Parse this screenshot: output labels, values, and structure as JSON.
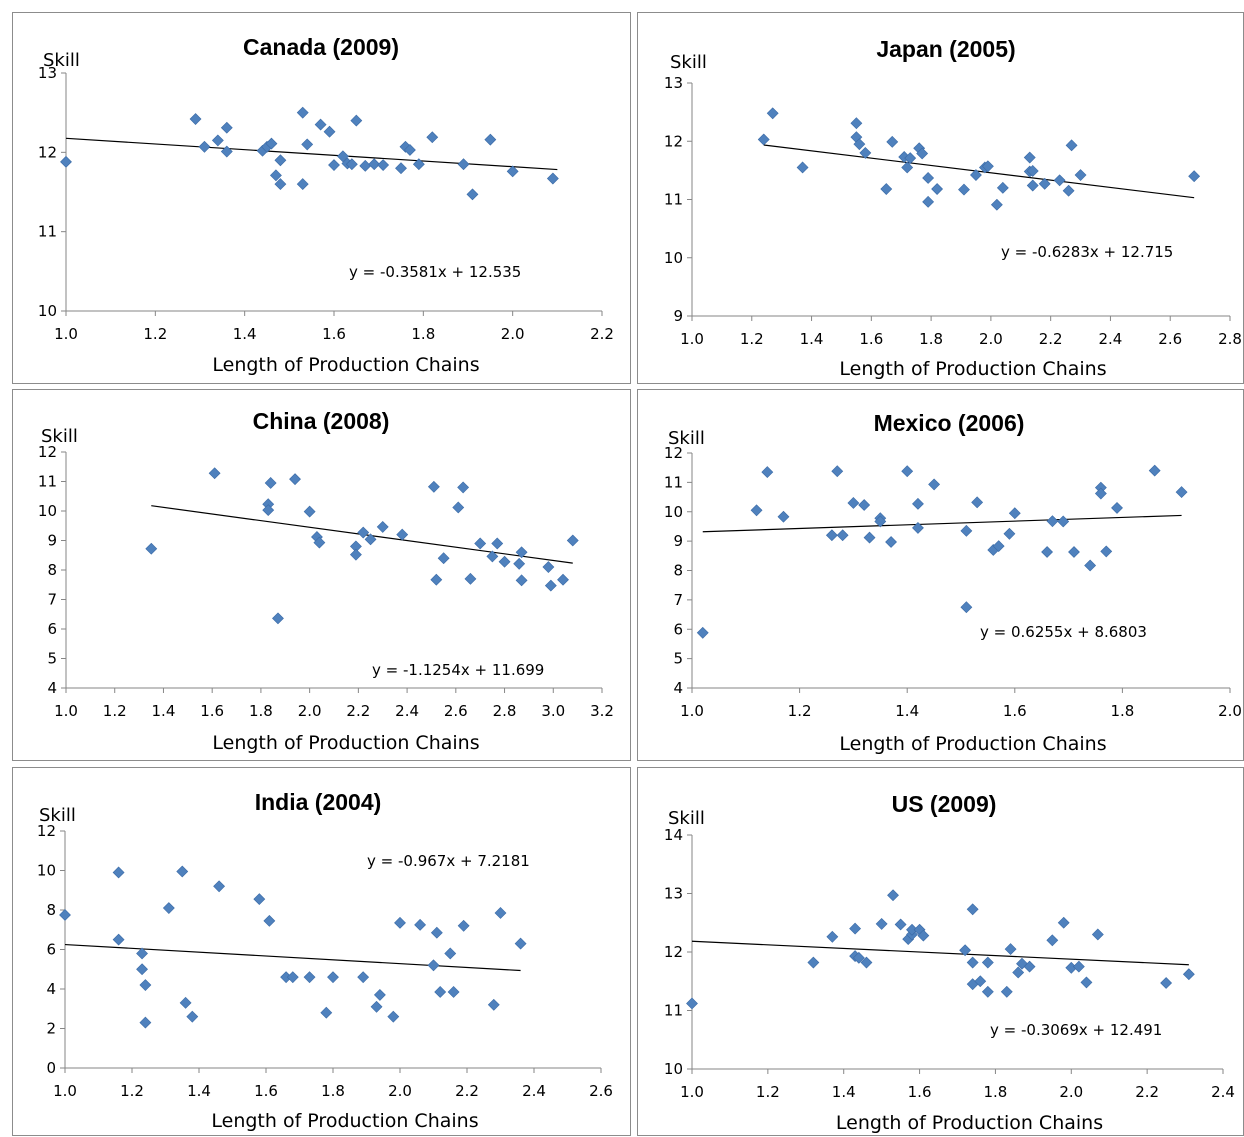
{
  "chart_data": [
    {
      "type": "scatter",
      "title": "Canada (2009)",
      "ylabel": "Skill",
      "xlabel": "Length of Production Chains",
      "equation": "y = -0.3581x + 12.535",
      "xlim": [
        1.0,
        2.2
      ],
      "ylim": [
        10,
        13
      ],
      "xticks": [
        "1.0",
        "1.2",
        "1.4",
        "1.6",
        "1.8",
        "2.0",
        "2.2"
      ],
      "yticks": [
        "10",
        "11",
        "12",
        "13"
      ],
      "trend": {
        "slope": -0.3581,
        "intercept": 12.535,
        "x_range": [
          1.0,
          2.1
        ]
      },
      "series": [
        {
          "marker_color": "#4f81bd",
          "points": [
            [
              1.0,
              11.88
            ],
            [
              1.29,
              12.42
            ],
            [
              1.31,
              12.07
            ],
            [
              1.34,
              12.15
            ],
            [
              1.36,
              12.01
            ],
            [
              1.36,
              12.31
            ],
            [
              1.44,
              12.02
            ],
            [
              1.45,
              12.07
            ],
            [
              1.46,
              12.11
            ],
            [
              1.47,
              11.71
            ],
            [
              1.48,
              11.9
            ],
            [
              1.48,
              11.6
            ],
            [
              1.53,
              12.5
            ],
            [
              1.53,
              11.6
            ],
            [
              1.54,
              12.1
            ],
            [
              1.57,
              12.35
            ],
            [
              1.59,
              12.26
            ],
            [
              1.6,
              11.84
            ],
            [
              1.62,
              11.95
            ],
            [
              1.63,
              11.86
            ],
            [
              1.64,
              11.85
            ],
            [
              1.65,
              12.4
            ],
            [
              1.67,
              11.83
            ],
            [
              1.69,
              11.85
            ],
            [
              1.71,
              11.84
            ],
            [
              1.75,
              11.8
            ],
            [
              1.76,
              12.07
            ],
            [
              1.77,
              12.03
            ],
            [
              1.79,
              11.85
            ],
            [
              1.82,
              12.19
            ],
            [
              1.89,
              11.85
            ],
            [
              1.91,
              11.47
            ],
            [
              1.95,
              12.16
            ],
            [
              2.0,
              11.76
            ],
            [
              2.09,
              11.67
            ]
          ]
        }
      ]
    },
    {
      "type": "scatter",
      "title": "Japan (2005)",
      "ylabel": "Skill",
      "xlabel": "Length of Production Chains",
      "equation": "y = -0.6283x + 12.715",
      "xlim": [
        1.0,
        2.8
      ],
      "ylim": [
        9,
        13
      ],
      "xticks": [
        "1.0",
        "1.2",
        "1.4",
        "1.6",
        "1.8",
        "2.0",
        "2.2",
        "2.4",
        "2.6",
        "2.8"
      ],
      "yticks": [
        "9",
        "10",
        "11",
        "12",
        "13"
      ],
      "trend": {
        "slope": -0.6283,
        "intercept": 12.715,
        "x_range": [
          1.24,
          2.68
        ]
      },
      "series": [
        {
          "marker_color": "#4f81bd",
          "points": [
            [
              1.24,
              12.03
            ],
            [
              1.27,
              12.48
            ],
            [
              1.37,
              11.55
            ],
            [
              1.55,
              12.31
            ],
            [
              1.55,
              12.07
            ],
            [
              1.56,
              11.95
            ],
            [
              1.58,
              11.8
            ],
            [
              1.65,
              11.18
            ],
            [
              1.67,
              11.99
            ],
            [
              1.71,
              11.73
            ],
            [
              1.72,
              11.55
            ],
            [
              1.73,
              11.71
            ],
            [
              1.76,
              11.88
            ],
            [
              1.77,
              11.79
            ],
            [
              1.79,
              11.37
            ],
            [
              1.79,
              10.96
            ],
            [
              1.82,
              11.18
            ],
            [
              1.91,
              11.17
            ],
            [
              1.95,
              11.42
            ],
            [
              1.98,
              11.55
            ],
            [
              1.99,
              11.57
            ],
            [
              2.02,
              10.91
            ],
            [
              2.04,
              11.2
            ],
            [
              2.13,
              11.72
            ],
            [
              2.13,
              11.48
            ],
            [
              2.14,
              11.24
            ],
            [
              2.14,
              11.49
            ],
            [
              2.18,
              11.27
            ],
            [
              2.23,
              11.33
            ],
            [
              2.26,
              11.15
            ],
            [
              2.27,
              11.93
            ],
            [
              2.3,
              11.42
            ],
            [
              2.68,
              11.4
            ]
          ]
        }
      ]
    },
    {
      "type": "scatter",
      "title": "China (2008)",
      "ylabel": "Skill",
      "xlabel": "Length of Production Chains",
      "equation": "y = -1.1254x + 11.699",
      "xlim": [
        1.0,
        3.2
      ],
      "ylim": [
        4,
        12
      ],
      "xticks": [
        "1.0",
        "1.2",
        "1.4",
        "1.6",
        "1.8",
        "2.0",
        "2.2",
        "2.4",
        "2.6",
        "2.8",
        "3.0",
        "3.2"
      ],
      "yticks": [
        "4",
        "5",
        "6",
        "7",
        "8",
        "9",
        "10",
        "11",
        "12"
      ],
      "trend": {
        "slope": -1.1254,
        "intercept": 11.699,
        "x_range": [
          1.35,
          3.08
        ]
      },
      "series": [
        {
          "marker_color": "#4f81bd",
          "points": [
            [
              1.35,
              8.72
            ],
            [
              1.61,
              11.28
            ],
            [
              1.83,
              10.23
            ],
            [
              1.83,
              10.03
            ],
            [
              1.84,
              10.95
            ],
            [
              1.87,
              6.36
            ],
            [
              1.94,
              11.08
            ],
            [
              2.0,
              9.98
            ],
            [
              2.03,
              9.12
            ],
            [
              2.04,
              8.93
            ],
            [
              2.19,
              8.8
            ],
            [
              2.19,
              8.52
            ],
            [
              2.22,
              9.27
            ],
            [
              2.25,
              9.04
            ],
            [
              2.3,
              9.46
            ],
            [
              2.38,
              9.2
            ],
            [
              2.51,
              10.82
            ],
            [
              2.52,
              7.67
            ],
            [
              2.55,
              8.4
            ],
            [
              2.61,
              10.12
            ],
            [
              2.63,
              10.8
            ],
            [
              2.66,
              7.7
            ],
            [
              2.7,
              8.9
            ],
            [
              2.75,
              8.46
            ],
            [
              2.77,
              8.9
            ],
            [
              2.8,
              8.28
            ],
            [
              2.86,
              8.21
            ],
            [
              2.87,
              8.6
            ],
            [
              2.87,
              7.65
            ],
            [
              2.98,
              8.1
            ],
            [
              2.99,
              7.47
            ],
            [
              3.04,
              7.67
            ],
            [
              3.08,
              9.0
            ]
          ]
        }
      ]
    },
    {
      "type": "scatter",
      "title": "Mexico (2006)",
      "ylabel": "Skill",
      "xlabel": "Length of Production Chains",
      "equation": "y = 0.6255x + 8.6803",
      "xlim": [
        1.0,
        2.0
      ],
      "ylim": [
        4,
        12
      ],
      "xticks": [
        "1.0",
        "1.2",
        "1.4",
        "1.6",
        "1.8",
        "2.0"
      ],
      "yticks": [
        "4",
        "5",
        "6",
        "7",
        "8",
        "9",
        "10",
        "11",
        "12"
      ],
      "trend": {
        "slope": 0.6255,
        "intercept": 8.6803,
        "x_range": [
          1.02,
          1.91
        ]
      },
      "series": [
        {
          "marker_color": "#4f81bd",
          "points": [
            [
              1.02,
              5.88
            ],
            [
              1.12,
              10.05
            ],
            [
              1.14,
              11.35
            ],
            [
              1.17,
              9.83
            ],
            [
              1.26,
              9.2
            ],
            [
              1.27,
              11.38
            ],
            [
              1.28,
              9.2
            ],
            [
              1.3,
              10.3
            ],
            [
              1.32,
              10.23
            ],
            [
              1.33,
              9.12
            ],
            [
              1.35,
              9.78
            ],
            [
              1.35,
              9.67
            ],
            [
              1.37,
              8.97
            ],
            [
              1.4,
              11.38
            ],
            [
              1.42,
              10.27
            ],
            [
              1.42,
              9.45
            ],
            [
              1.45,
              10.93
            ],
            [
              1.51,
              9.35
            ],
            [
              1.51,
              6.75
            ],
            [
              1.53,
              10.32
            ],
            [
              1.56,
              8.7
            ],
            [
              1.57,
              8.83
            ],
            [
              1.59,
              9.25
            ],
            [
              1.6,
              9.95
            ],
            [
              1.66,
              8.63
            ],
            [
              1.67,
              9.68
            ],
            [
              1.69,
              9.67
            ],
            [
              1.71,
              8.63
            ],
            [
              1.74,
              8.17
            ],
            [
              1.76,
              10.82
            ],
            [
              1.76,
              10.62
            ],
            [
              1.77,
              8.65
            ],
            [
              1.79,
              10.13
            ],
            [
              1.86,
              11.4
            ],
            [
              1.91,
              10.67
            ]
          ]
        }
      ]
    },
    {
      "type": "scatter",
      "title": "India (2004)",
      "ylabel": "Skill",
      "xlabel": "Length of Production Chains",
      "equation": "y = -0.967x + 7.2181",
      "xlim": [
        1.0,
        2.6
      ],
      "ylim": [
        0,
        12
      ],
      "xticks": [
        "1.0",
        "1.2",
        "1.4",
        "1.6",
        "1.8",
        "2.0",
        "2.2",
        "2.4",
        "2.6"
      ],
      "yticks": [
        "0",
        "2",
        "4",
        "6",
        "8",
        "10",
        "12"
      ],
      "trend": {
        "slope": -0.967,
        "intercept": 7.2181,
        "x_range": [
          1.0,
          2.36
        ]
      },
      "series": [
        {
          "marker_color": "#4f81bd",
          "points": [
            [
              1.0,
              7.75
            ],
            [
              1.16,
              6.5
            ],
            [
              1.16,
              9.9
            ],
            [
              1.23,
              5.8
            ],
            [
              1.23,
              5.0
            ],
            [
              1.24,
              4.2
            ],
            [
              1.24,
              2.3
            ],
            [
              1.31,
              8.1
            ],
            [
              1.35,
              9.95
            ],
            [
              1.36,
              3.3
            ],
            [
              1.38,
              2.6
            ],
            [
              1.46,
              9.2
            ],
            [
              1.58,
              8.55
            ],
            [
              1.61,
              7.45
            ],
            [
              1.66,
              4.6
            ],
            [
              1.68,
              4.6
            ],
            [
              1.73,
              4.6
            ],
            [
              1.78,
              2.8
            ],
            [
              1.8,
              4.6
            ],
            [
              1.89,
              4.6
            ],
            [
              1.93,
              3.1
            ],
            [
              1.94,
              3.7
            ],
            [
              1.98,
              2.6
            ],
            [
              2.0,
              7.35
            ],
            [
              2.06,
              7.25
            ],
            [
              2.1,
              5.2
            ],
            [
              2.11,
              6.85
            ],
            [
              2.12,
              3.85
            ],
            [
              2.15,
              5.8
            ],
            [
              2.16,
              3.85
            ],
            [
              2.19,
              7.2
            ],
            [
              2.28,
              3.2
            ],
            [
              2.3,
              7.85
            ],
            [
              2.36,
              6.3
            ]
          ]
        }
      ]
    },
    {
      "type": "scatter",
      "title": "US (2009)",
      "ylabel": "Skill",
      "xlabel": "Length of Production Chains",
      "equation": "y = -0.3069x + 12.491",
      "xlim": [
        1.0,
        2.4
      ],
      "ylim": [
        10,
        14
      ],
      "xticks": [
        "1.0",
        "1.2",
        "1.4",
        "1.6",
        "1.8",
        "2.0",
        "2.2",
        "2.4"
      ],
      "yticks": [
        "10",
        "11",
        "12",
        "13",
        "14"
      ],
      "trend": {
        "slope": -0.3069,
        "intercept": 12.491,
        "x_range": [
          1.0,
          2.31
        ]
      },
      "series": [
        {
          "marker_color": "#4f81bd",
          "points": [
            [
              1.0,
              11.12
            ],
            [
              1.32,
              11.82
            ],
            [
              1.37,
              12.26
            ],
            [
              1.43,
              12.4
            ],
            [
              1.43,
              11.93
            ],
            [
              1.44,
              11.9
            ],
            [
              1.46,
              11.82
            ],
            [
              1.5,
              12.48
            ],
            [
              1.53,
              12.97
            ],
            [
              1.55,
              12.47
            ],
            [
              1.57,
              12.22
            ],
            [
              1.58,
              12.3
            ],
            [
              1.58,
              12.38
            ],
            [
              1.6,
              12.38
            ],
            [
              1.61,
              12.28
            ],
            [
              1.72,
              12.03
            ],
            [
              1.74,
              12.73
            ],
            [
              1.74,
              11.82
            ],
            [
              1.74,
              11.45
            ],
            [
              1.76,
              11.5
            ],
            [
              1.78,
              11.82
            ],
            [
              1.78,
              11.32
            ],
            [
              1.83,
              11.32
            ],
            [
              1.84,
              12.05
            ],
            [
              1.86,
              11.65
            ],
            [
              1.87,
              11.8
            ],
            [
              1.89,
              11.75
            ],
            [
              1.95,
              12.2
            ],
            [
              1.98,
              12.5
            ],
            [
              2.0,
              11.73
            ],
            [
              2.02,
              11.75
            ],
            [
              2.04,
              11.48
            ],
            [
              2.07,
              12.3
            ],
            [
              2.25,
              11.47
            ],
            [
              2.31,
              11.62
            ]
          ]
        }
      ]
    }
  ]
}
